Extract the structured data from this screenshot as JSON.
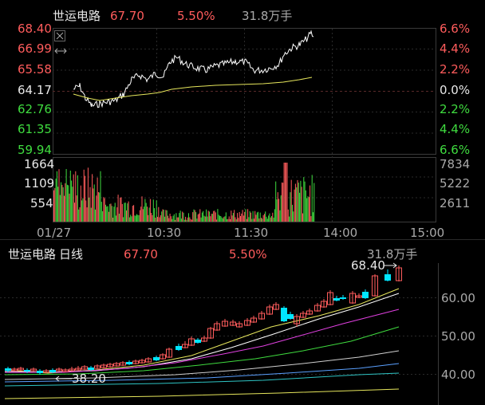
{
  "intraday": {
    "header": {
      "name": "世运电路",
      "price": "67.70",
      "change_pct": "5.50%",
      "volume": "31.8万手"
    },
    "price_axis_left": [
      "68.40",
      "66.99",
      "65.58",
      "64.17",
      "62.76",
      "61.35",
      "59.94"
    ],
    "price_axis_right": [
      "6.6%",
      "4.4%",
      "2.2%",
      "0.0%",
      "2.2%",
      "4.4%",
      "6.6%"
    ],
    "volume_axis_left": [
      "1664",
      "1109",
      "554"
    ],
    "volume_axis_right": [
      "7834",
      "5222",
      "2611"
    ],
    "time_axis": [
      "01/27",
      "10:30",
      "11:30",
      "14:00",
      "15:00"
    ],
    "icons": [
      "close-icon",
      "expand-horizontal-icon"
    ]
  },
  "daily": {
    "header": {
      "name": "世运电路",
      "period": "日线",
      "price": "67.70",
      "change_pct": "5.50%",
      "volume": "31.8万手"
    },
    "price_axis": [
      "60.00",
      "50.00",
      "40.00"
    ],
    "high_marker": "68.40",
    "low_marker": "38.20"
  },
  "colors": {
    "up": "#ff5c5c",
    "down": "#00e5ff",
    "avg_line": "#e6e65c",
    "price_line": "#ffffff",
    "volume_red": "#ff5c5c",
    "volume_green": "#3fdc3f"
  }
}
